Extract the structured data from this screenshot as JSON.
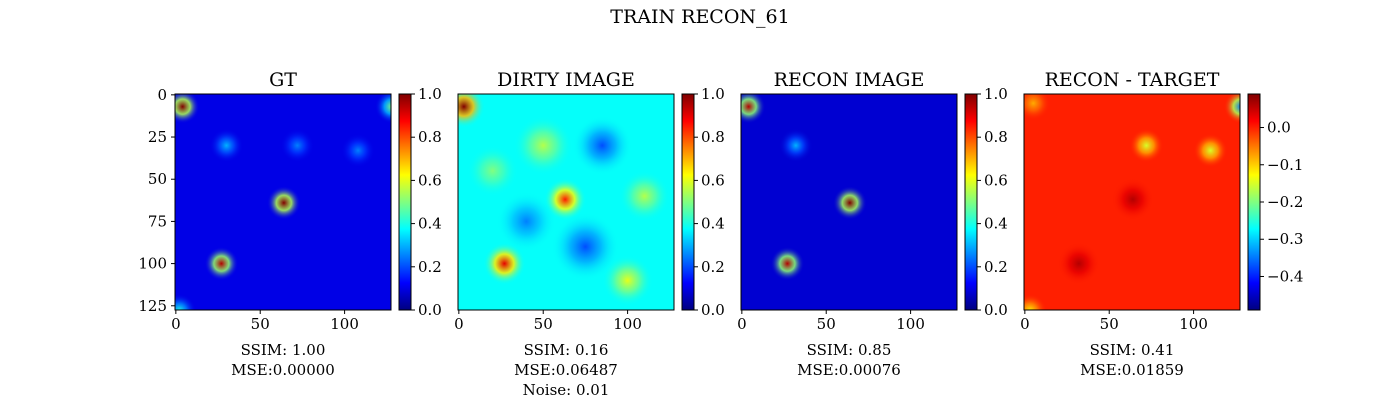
{
  "title": "TRAIN RECON_61",
  "chart_data": [
    {
      "type": "heatmap",
      "title": "GT",
      "colormap": "jet",
      "xlim": [
        -0.5,
        127.5
      ],
      "ylim": [
        127.5,
        -0.5
      ],
      "xticks": [
        0,
        50,
        100
      ],
      "yticks": [
        0,
        25,
        50,
        75,
        100,
        125
      ],
      "clim": [
        0,
        1
      ],
      "cticks": [
        {
          "value": 0,
          "label": "0.0"
        },
        {
          "value": 0.2,
          "label": "0.2"
        },
        {
          "value": 0.4,
          "label": "0.4"
        },
        {
          "value": 0.6,
          "label": "0.6"
        },
        {
          "value": 0.8,
          "label": "0.8"
        },
        {
          "value": 1,
          "label": "1.0"
        }
      ],
      "background": 0.1,
      "sources": [
        {
          "x": 4,
          "y": 7,
          "value": 1.0,
          "sigma": 4
        },
        {
          "x": 64,
          "y": 64,
          "value": 1.0,
          "sigma": 4
        },
        {
          "x": 27,
          "y": 100,
          "value": 0.95,
          "sigma": 4
        },
        {
          "x": 128,
          "y": 7,
          "value": 0.5,
          "sigma": 4
        },
        {
          "x": 30,
          "y": 30,
          "value": 0.3,
          "sigma": 4
        },
        {
          "x": 72,
          "y": 30,
          "value": 0.25,
          "sigma": 4
        },
        {
          "x": 108,
          "y": 33,
          "value": 0.25,
          "sigma": 4
        },
        {
          "x": 2,
          "y": 128,
          "value": 0.4,
          "sigma": 4
        }
      ],
      "caption": [
        "SSIM: 1.00",
        "MSE:0.00000"
      ]
    },
    {
      "type": "heatmap",
      "title": "DIRTY IMAGE",
      "colormap": "jet",
      "xlim": [
        -0.5,
        127.5
      ],
      "ylim": [
        127.5,
        -0.5
      ],
      "xticks": [
        0,
        50,
        100
      ],
      "clim": [
        0,
        1
      ],
      "cticks": [
        {
          "value": 0,
          "label": "0.0"
        },
        {
          "value": 0.2,
          "label": "0.2"
        },
        {
          "value": 0.4,
          "label": "0.4"
        },
        {
          "value": 0.6,
          "label": "0.6"
        },
        {
          "value": 0.8,
          "label": "0.8"
        },
        {
          "value": 1,
          "label": "1.0"
        }
      ],
      "background": 0.38,
      "sources": [
        {
          "x": 3,
          "y": 7,
          "value": 1.0,
          "sigma": 5
        },
        {
          "x": 63,
          "y": 62,
          "value": 0.85,
          "sigma": 5
        },
        {
          "x": 27,
          "y": 100,
          "value": 0.9,
          "sigma": 5
        },
        {
          "x": 50,
          "y": 30,
          "value": 0.55,
          "sigma": 7
        },
        {
          "x": 85,
          "y": 30,
          "value": 0.2,
          "sigma": 7
        },
        {
          "x": 75,
          "y": 90,
          "value": 0.2,
          "sigma": 8
        },
        {
          "x": 100,
          "y": 110,
          "value": 0.6,
          "sigma": 6
        },
        {
          "x": 40,
          "y": 75,
          "value": 0.25,
          "sigma": 7
        },
        {
          "x": 110,
          "y": 60,
          "value": 0.55,
          "sigma": 6
        },
        {
          "x": 20,
          "y": 45,
          "value": 0.5,
          "sigma": 6
        }
      ],
      "caption": [
        "SSIM: 0.16",
        "MSE:0.06487",
        "Noise: 0.01"
      ]
    },
    {
      "type": "heatmap",
      "title": "RECON IMAGE",
      "colormap": "jet",
      "xlim": [
        -0.5,
        127.5
      ],
      "ylim": [
        127.5,
        -0.5
      ],
      "xticks": [
        0,
        50,
        100
      ],
      "clim": [
        0,
        1
      ],
      "cticks": [
        {
          "value": 0,
          "label": "0.0"
        },
        {
          "value": 0.2,
          "label": "0.2"
        },
        {
          "value": 0.4,
          "label": "0.4"
        },
        {
          "value": 0.6,
          "label": "0.6"
        },
        {
          "value": 0.8,
          "label": "0.8"
        },
        {
          "value": 1,
          "label": "1.0"
        }
      ],
      "background": 0.08,
      "sources": [
        {
          "x": 4,
          "y": 7,
          "value": 0.95,
          "sigma": 4
        },
        {
          "x": 64,
          "y": 64,
          "value": 1.0,
          "sigma": 4
        },
        {
          "x": 27,
          "y": 100,
          "value": 0.95,
          "sigma": 4
        },
        {
          "x": 32,
          "y": 30,
          "value": 0.3,
          "sigma": 4
        }
      ],
      "caption": [
        "SSIM: 0.85",
        "MSE:0.00076"
      ]
    },
    {
      "type": "heatmap",
      "title": "RECON - TARGET",
      "colormap": "jet",
      "xlim": [
        -0.5,
        127.5
      ],
      "ylim": [
        127.5,
        -0.5
      ],
      "xticks": [
        0,
        50,
        100
      ],
      "clim": [
        -0.49,
        0.09
      ],
      "cticks": [
        {
          "value": 0,
          "label": "0.0"
        },
        {
          "value": -0.1,
          "label": "−0.1"
        },
        {
          "value": -0.2,
          "label": "−0.2"
        },
        {
          "value": -0.3,
          "label": "−0.3"
        },
        {
          "value": -0.4,
          "label": "−0.4"
        }
      ],
      "background": 0.0,
      "sources": [
        {
          "x": 64,
          "y": 62,
          "value": 0.06,
          "sigma": 5
        },
        {
          "x": 32,
          "y": 100,
          "value": 0.06,
          "sigma": 5
        },
        {
          "x": 72,
          "y": 30,
          "value": -0.15,
          "sigma": 4
        },
        {
          "x": 110,
          "y": 33,
          "value": -0.15,
          "sigma": 4
        },
        {
          "x": 128,
          "y": 7,
          "value": -0.35,
          "sigma": 4
        },
        {
          "x": 5,
          "y": 5,
          "value": -0.08,
          "sigma": 4
        },
        {
          "x": 3,
          "y": 128,
          "value": -0.12,
          "sigma": 4
        }
      ],
      "caption": [
        "SSIM: 0.41",
        "MSE:0.01859"
      ]
    }
  ]
}
